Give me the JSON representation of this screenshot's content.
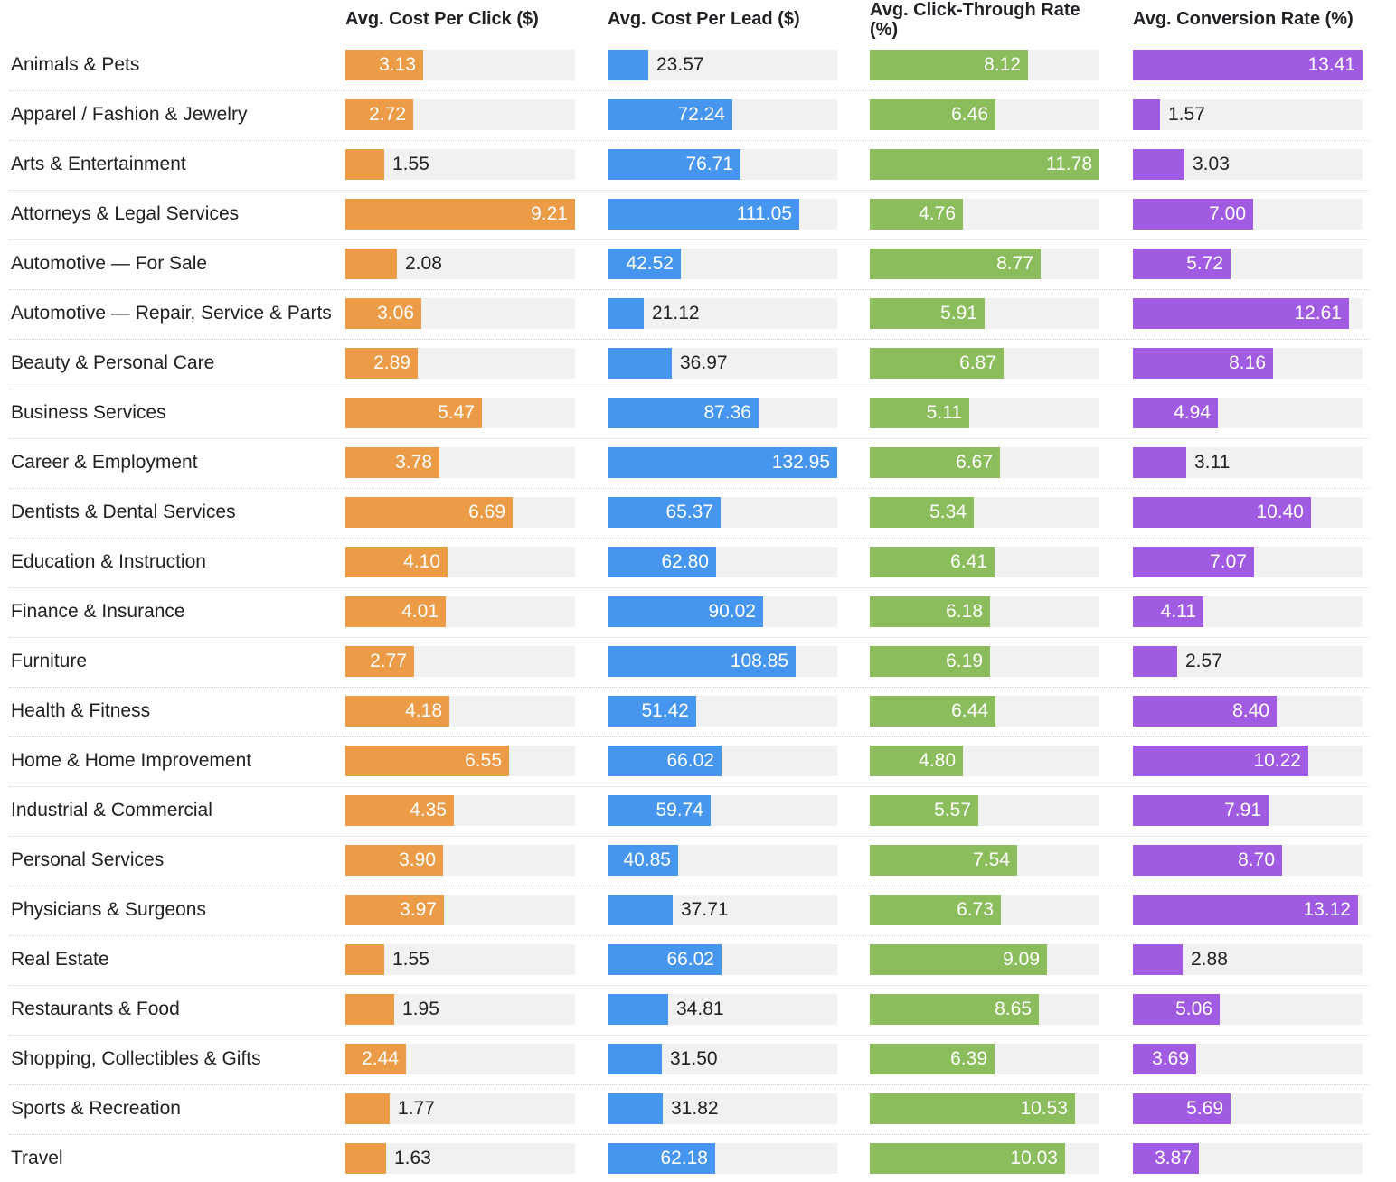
{
  "chart_data": {
    "type": "table",
    "title": "",
    "columns": [
      {
        "key": "cpc",
        "header": "Avg. Cost Per Click ($)",
        "color": "#ec9b47",
        "max": 9.21
      },
      {
        "key": "cpl",
        "header": "Avg. Cost Per Lead ($)",
        "color": "#4696f0",
        "max": 132.95
      },
      {
        "key": "ctr",
        "header": "Avg. Click-Through Rate (%)",
        "color": "#8cbd5c",
        "max": 11.78
      },
      {
        "key": "cvr",
        "header": "Avg. Conversion Rate (%)",
        "color": "#a15ae2",
        "max": 13.41
      }
    ],
    "categories": [
      "Animals & Pets",
      "Apparel / Fashion & Jewelry",
      "Arts & Entertainment",
      "Attorneys & Legal Services",
      "Automotive — For Sale",
      "Automotive — Repair, Service & Parts",
      "Beauty & Personal Care",
      "Business Services",
      "Career & Employment",
      "Dentists & Dental Services",
      "Education & Instruction",
      "Finance & Insurance",
      "Furniture",
      "Health & Fitness",
      "Home & Home Improvement",
      "Industrial & Commercial",
      "Personal Services",
      "Physicians & Surgeons",
      "Real Estate",
      "Restaurants & Food",
      "Shopping, Collectibles & Gifts",
      "Sports & Recreation",
      "Travel"
    ],
    "series": [
      {
        "name": "Avg. Cost Per Click ($)",
        "values": [
          "3.13",
          "2.72",
          "1.55",
          "9.21",
          "2.08",
          "3.06",
          "2.89",
          "5.47",
          "3.78",
          "6.69",
          "4.10",
          "4.01",
          "2.77",
          "4.18",
          "6.55",
          "4.35",
          "3.90",
          "3.97",
          "1.55",
          "1.95",
          "2.44",
          "1.77",
          "1.63"
        ]
      },
      {
        "name": "Avg. Cost Per Lead ($)",
        "values": [
          "23.57",
          "72.24",
          "76.71",
          "111.05",
          "42.52",
          "21.12",
          "36.97",
          "87.36",
          "132.95",
          "65.37",
          "62.80",
          "90.02",
          "108.85",
          "51.42",
          "66.02",
          "59.74",
          "40.85",
          "37.71",
          "66.02",
          "34.81",
          "31.50",
          "31.82",
          "62.18"
        ]
      },
      {
        "name": "Avg. Click-Through Rate (%)",
        "values": [
          "8.12",
          "6.46",
          "11.78",
          "4.76",
          "8.77",
          "5.91",
          "6.87",
          "5.11",
          "6.67",
          "5.34",
          "6.41",
          "6.18",
          "6.19",
          "6.44",
          "4.80",
          "5.57",
          "7.54",
          "6.73",
          "9.09",
          "8.65",
          "6.39",
          "10.53",
          "10.03"
        ]
      },
      {
        "name": "Avg. Conversion Rate (%)",
        "values": [
          "13.41",
          "1.57",
          "3.03",
          "7.00",
          "5.72",
          "12.61",
          "8.16",
          "4.94",
          "3.11",
          "10.40",
          "7.07",
          "4.11",
          "2.57",
          "8.40",
          "10.22",
          "7.91",
          "8.70",
          "13.12",
          "2.88",
          "5.06",
          "3.69",
          "5.69",
          "3.87"
        ]
      }
    ]
  }
}
